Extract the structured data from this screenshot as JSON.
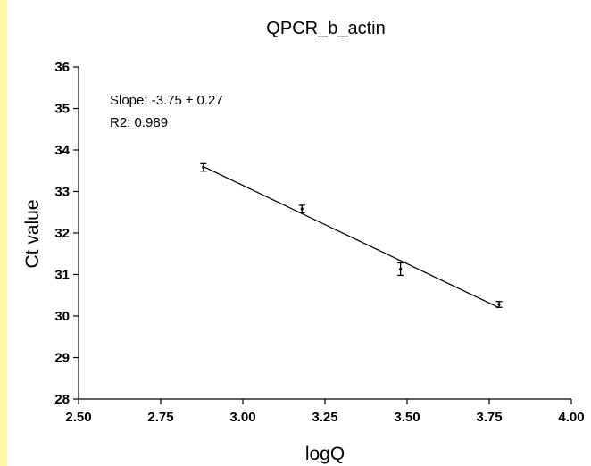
{
  "colors": {
    "strip": "#fef6a8",
    "ink": "#000000",
    "background": "#ffffff"
  },
  "chart_data": {
    "type": "scatter",
    "title": "QPCR_b_actin",
    "xlabel": "logQ",
    "ylabel": "Ct value",
    "xlim": [
      2.5,
      4.0
    ],
    "ylim": [
      28,
      36
    ],
    "xticks": [
      "2.50",
      "2.75",
      "3.00",
      "3.25",
      "3.50",
      "3.75",
      "4.00"
    ],
    "yticks": [
      "28",
      "29",
      "30",
      "31",
      "32",
      "33",
      "34",
      "35",
      "36"
    ],
    "grid": false,
    "points": [
      {
        "x": 2.88,
        "y": 33.58,
        "err": 0.09
      },
      {
        "x": 3.18,
        "y": 32.58,
        "err": 0.09
      },
      {
        "x": 3.48,
        "y": 31.13,
        "err": 0.15
      },
      {
        "x": 3.78,
        "y": 30.28,
        "err": 0.07
      }
    ],
    "fit": {
      "x": [
        2.88,
        3.78
      ],
      "y": [
        33.6,
        30.2
      ]
    },
    "annotations": [
      "Slope: -3.75 ± 0.27",
      "R2: 0.989"
    ]
  }
}
